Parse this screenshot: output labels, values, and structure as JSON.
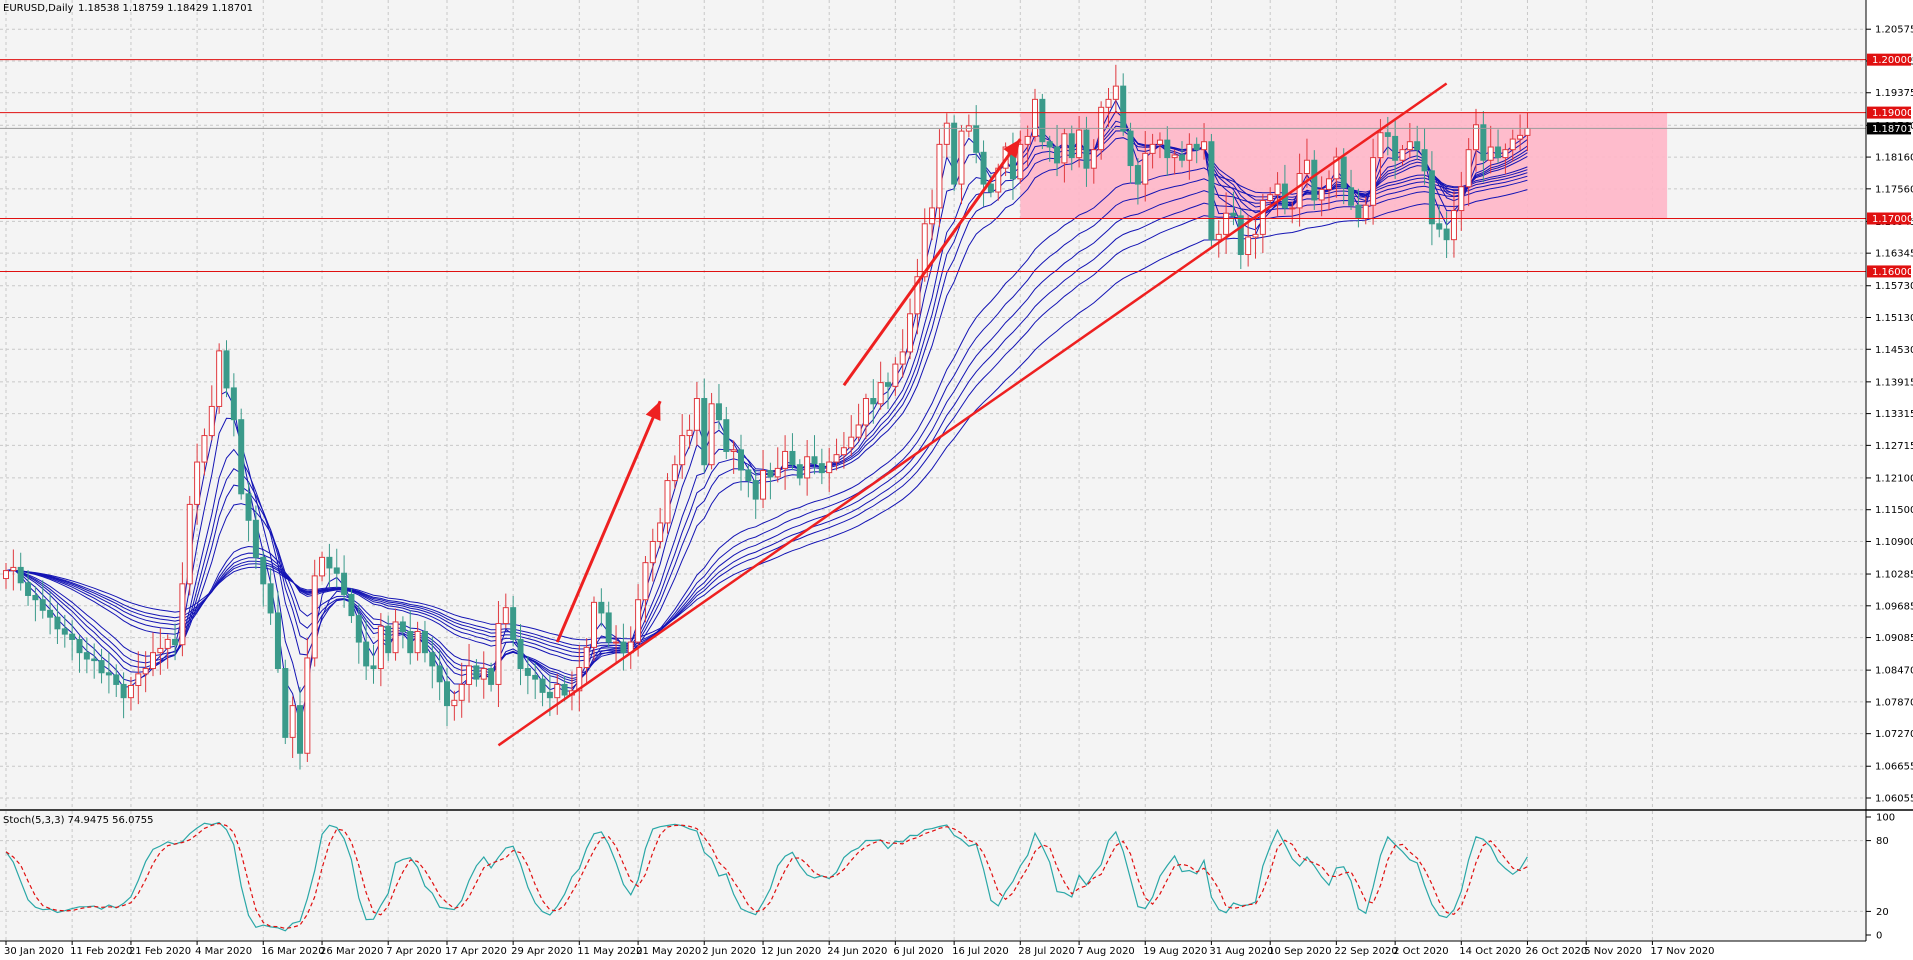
{
  "header": {
    "symbol": "EURUSD,Daily",
    "ohlc": "1.18538 1.18759 1.18429 1.18701"
  },
  "stoch_header": "Stoch(5,3,3) 74.9475 56.0755",
  "colors": {
    "background": "#f4f4f4",
    "grid": "#c8c8c8",
    "candle_bull": "#e0393e",
    "candle_bear": "#3a9a8a",
    "ma": "#1414b4",
    "hline": "#e01010",
    "zone": "#ffb6c8",
    "trend": "#ee2020",
    "stoch_main": "#2aa7a7",
    "stoch_signal": "#e01010",
    "current_price_box": "#000000"
  },
  "chart_data": [
    {
      "type": "candlestick",
      "title": "EURUSD,Daily",
      "ylim": [
        1.06055,
        1.209
      ],
      "y_ticks": [
        "1.20575",
        "1.19975",
        "1.19375",
        "1.18760",
        "1.18160",
        "1.17560",
        "1.16945",
        "1.16345",
        "1.15730",
        "1.15130",
        "1.14530",
        "1.13915",
        "1.13315",
        "1.12715",
        "1.12100",
        "1.11500",
        "1.10900",
        "1.10285",
        "1.09685",
        "1.09085",
        "1.08470",
        "1.07870",
        "1.07270",
        "1.06655",
        "1.06055"
      ],
      "x_ticks": [
        "30 Jan 2020",
        "11 Feb 2020",
        "21 Feb 2020",
        "4 Mar 2020",
        "16 Mar 2020",
        "26 Mar 2020",
        "7 Apr 2020",
        "17 Apr 2020",
        "29 Apr 2020",
        "11 May 2020",
        "21 May 2020",
        "2 Jun 2020",
        "12 Jun 2020",
        "24 Jun 2020",
        "6 Jul 2020",
        "16 Jul 2020",
        "28 Jul 2020",
        "7 Aug 2020",
        "19 Aug 2020",
        "31 Aug 2020",
        "10 Sep 2020",
        "22 Sep 2020",
        "2 Oct 2020",
        "14 Oct 2020",
        "26 Oct 2020",
        "5 Nov 2020",
        "17 Nov 2020"
      ],
      "x_tick_index": [
        0,
        9,
        17,
        26,
        35,
        43,
        52,
        60,
        69,
        78,
        86,
        95,
        103,
        112,
        121,
        129,
        138,
        146,
        155,
        164,
        172,
        181,
        189,
        198,
        207,
        215,
        224
      ],
      "closes": [
        1.1035,
        1.1041,
        1.1012,
        1.0988,
        1.098,
        1.096,
        1.0947,
        1.0925,
        1.0915,
        1.0905,
        1.088,
        1.0868,
        1.0865,
        1.0842,
        1.0838,
        1.082,
        1.0795,
        1.0818,
        1.084,
        1.085,
        1.088,
        1.0888,
        1.0905,
        1.0895,
        1.101,
        1.116,
        1.124,
        1.129,
        1.1345,
        1.145,
        1.138,
        1.132,
        1.118,
        1.113,
        1.106,
        1.101,
        1.0955,
        1.085,
        1.072,
        1.078,
        1.069,
        1.087,
        1.1025,
        1.106,
        1.104,
        1.103,
        1.099,
        1.095,
        1.09,
        1.0855,
        1.085,
        1.093,
        1.088,
        1.0938,
        1.092,
        1.088,
        1.092,
        1.088,
        1.0855,
        1.0825,
        1.078,
        1.079,
        1.082,
        1.0855,
        1.083,
        1.085,
        1.082,
        1.0935,
        1.0965,
        1.0905,
        1.085,
        1.0837,
        1.083,
        1.0805,
        1.0795,
        1.082,
        1.08,
        1.0808,
        1.0852,
        1.089,
        1.0975,
        1.0955,
        1.09,
        1.09,
        1.088,
        1.09,
        1.098,
        1.105,
        1.109,
        1.1125,
        1.1205,
        1.1235,
        1.129,
        1.13,
        1.136,
        1.1235,
        1.135,
        1.132,
        1.126,
        1.1263,
        1.1225,
        1.1205,
        1.117,
        1.1224,
        1.1212,
        1.1228,
        1.126,
        1.1235,
        1.121,
        1.125,
        1.1237,
        1.122,
        1.124,
        1.1254,
        1.1267,
        1.1287,
        1.131,
        1.136,
        1.135,
        1.139,
        1.1383,
        1.1425,
        1.1448,
        1.152,
        1.159,
        1.169,
        1.172,
        1.184,
        1.188,
        1.1765,
        1.1865,
        1.1875,
        1.1825,
        1.1765,
        1.175,
        1.1795,
        1.1835,
        1.1775,
        1.184,
        1.1855,
        1.1925,
        1.1845,
        1.1835,
        1.1805,
        1.186,
        1.1815,
        1.1867,
        1.1795,
        1.183,
        1.191,
        1.1925,
        1.195,
        1.1865,
        1.18,
        1.1765,
        1.1823,
        1.184,
        1.1848,
        1.1815,
        1.182,
        1.181,
        1.184,
        1.183,
        1.1845,
        1.166,
        1.167,
        1.171,
        1.1705,
        1.1632,
        1.1665,
        1.167,
        1.1734,
        1.1745,
        1.1765,
        1.172,
        1.172,
        1.1785,
        1.181,
        1.1735,
        1.1755,
        1.1775,
        1.1816,
        1.1758,
        1.1725,
        1.17,
        1.1725,
        1.1815,
        1.1862,
        1.1855,
        1.181,
        1.183,
        1.1845,
        1.183,
        1.179,
        1.169,
        1.168,
        1.166,
        1.1715,
        1.176,
        1.183,
        1.1877,
        1.181,
        1.1835,
        1.1815,
        1.183,
        1.185,
        1.1857,
        1.187
      ]
    },
    {
      "type": "line",
      "title": "Stoch(5,3,3) 74.9475 56.0755",
      "ylim": [
        0,
        100
      ],
      "y_ticks": [
        "100",
        "80",
        "20",
        "0"
      ],
      "series": [
        {
          "name": "74.9475"
        },
        {
          "name": "56.0755"
        }
      ]
    }
  ],
  "levels": [
    {
      "price": 1.2,
      "label": "1.20000"
    },
    {
      "price": 1.19,
      "label": "1.19000"
    },
    {
      "price": 1.17,
      "label": "1.17000"
    },
    {
      "price": 1.16,
      "label": "1.16000"
    }
  ],
  "current_price": {
    "price": 1.18701,
    "label": "1.18701"
  },
  "zone": {
    "start_index": 138,
    "end_index": 226,
    "top": 1.19,
    "bottom": 1.17
  },
  "trendlines": [
    {
      "from": [
        67,
        1.0705
      ],
      "to": [
        196,
        1.1955
      ]
    }
  ],
  "arrows": [
    {
      "from": [
        75,
        1.09
      ],
      "to": [
        89,
        1.1355
      ]
    },
    {
      "from": [
        114,
        1.1385
      ],
      "to": [
        138,
        1.185
      ]
    }
  ]
}
